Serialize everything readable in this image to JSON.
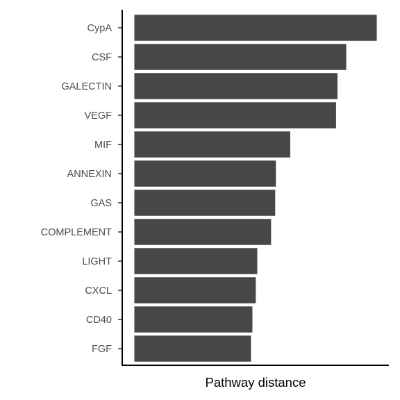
{
  "chart_data": {
    "type": "bar",
    "orientation": "horizontal",
    "title": "",
    "xlabel": "Pathway distance",
    "ylabel": "",
    "categories": [
      "CypA",
      "CSF",
      "GALECTIN",
      "VEGF",
      "MIF",
      "ANNEXIN",
      "GAS",
      "COMPLEMENT",
      "LIGHT",
      "CXCL",
      "CD40",
      "FGF"
    ],
    "values": [
      1.0,
      0.874,
      0.838,
      0.832,
      0.643,
      0.584,
      0.581,
      0.564,
      0.507,
      0.501,
      0.487,
      0.481
    ],
    "xlim": [
      -0.05,
      1.05
    ],
    "x_ticks_shown": false,
    "grid": false,
    "legend": "none",
    "bar_color": "#474747"
  }
}
